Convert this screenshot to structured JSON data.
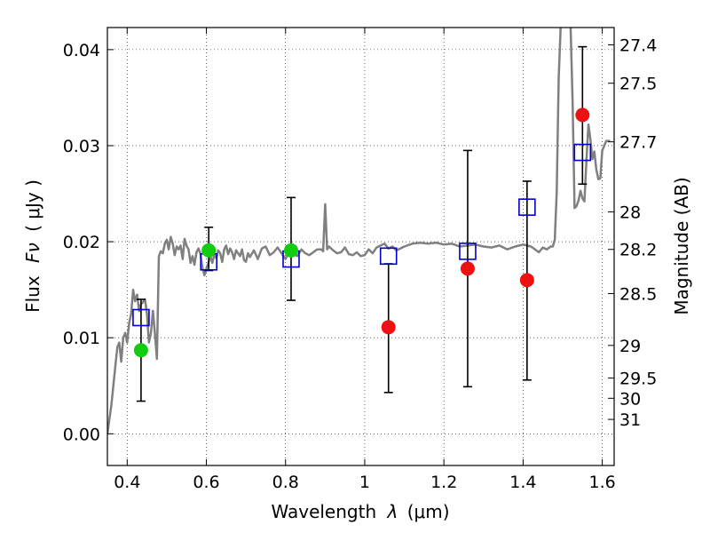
{
  "chart_data": {
    "type": "scatter",
    "xlabel_prefix": "Wavelength",
    "xlabel_symbol": "λ",
    "xlabel_unit": "(μm)",
    "ylabel_prefix": "Flux",
    "ylabel_symbol": "Fν",
    "ylabel_unit": "( μJy )",
    "y2label": "Magnitude (AB)",
    "xlim": [
      0.35,
      1.63
    ],
    "ylim": [
      -0.0033,
      0.0423
    ],
    "grid": true,
    "x_ticks": [
      0.4,
      0.6,
      0.8,
      1.0,
      1.2,
      1.4,
      1.6
    ],
    "x_tick_labels": [
      "0.4",
      "0.6",
      "0.8",
      "1",
      "1.2",
      "1.4",
      "1.6"
    ],
    "y_ticks": [
      0.0,
      0.01,
      0.02,
      0.03,
      0.04
    ],
    "y_tick_labels": [
      "0.00",
      "0.01",
      "0.02",
      "0.03",
      "0.04"
    ],
    "mag_ticks": [
      {
        "label": "27.4",
        "flux": 0.0405
      },
      {
        "label": "27.5",
        "flux": 0.0365
      },
      {
        "label": "27.7",
        "flux": 0.0304
      },
      {
        "label": "28",
        "flux": 0.0231
      },
      {
        "label": "28.2",
        "flux": 0.0192
      },
      {
        "label": "28.5",
        "flux": 0.0146
      },
      {
        "label": "29",
        "flux": 0.0092
      },
      {
        "label": "29.5",
        "flux": 0.0058
      },
      {
        "label": "30",
        "flux": 0.0037
      },
      {
        "label": "31",
        "flux": 0.0015
      }
    ],
    "series": [
      {
        "name": "model-spectrum",
        "kind": "line",
        "color": "#808080",
        "x": [
          0.35,
          0.36,
          0.37,
          0.375,
          0.38,
          0.385,
          0.39,
          0.395,
          0.4,
          0.405,
          0.41,
          0.415,
          0.42,
          0.425,
          0.43,
          0.435,
          0.44,
          0.445,
          0.45,
          0.455,
          0.46,
          0.465,
          0.47,
          0.475,
          0.48,
          0.485,
          0.49,
          0.495,
          0.5,
          0.505,
          0.51,
          0.515,
          0.52,
          0.525,
          0.53,
          0.535,
          0.54,
          0.545,
          0.55,
          0.555,
          0.56,
          0.565,
          0.57,
          0.575,
          0.58,
          0.585,
          0.59,
          0.595,
          0.6,
          0.605,
          0.61,
          0.615,
          0.62,
          0.625,
          0.63,
          0.635,
          0.64,
          0.645,
          0.65,
          0.655,
          0.66,
          0.665,
          0.67,
          0.675,
          0.68,
          0.685,
          0.69,
          0.695,
          0.7,
          0.705,
          0.71,
          0.72,
          0.73,
          0.74,
          0.75,
          0.76,
          0.77,
          0.78,
          0.79,
          0.8,
          0.81,
          0.82,
          0.83,
          0.84,
          0.85,
          0.86,
          0.87,
          0.88,
          0.89,
          0.895,
          0.9,
          0.905,
          0.91,
          0.92,
          0.93,
          0.94,
          0.95,
          0.96,
          0.97,
          0.98,
          0.99,
          1.0,
          1.01,
          1.02,
          1.03,
          1.04,
          1.05,
          1.06,
          1.07,
          1.08,
          1.09,
          1.1,
          1.12,
          1.14,
          1.16,
          1.18,
          1.2,
          1.22,
          1.24,
          1.26,
          1.28,
          1.3,
          1.32,
          1.34,
          1.36,
          1.38,
          1.4,
          1.42,
          1.43,
          1.44,
          1.45,
          1.46,
          1.47,
          1.475,
          1.48,
          1.485,
          1.49,
          1.495,
          1.5,
          1.505,
          1.51,
          1.515,
          1.52,
          1.525,
          1.53,
          1.535,
          1.54,
          1.545,
          1.55,
          1.555,
          1.56,
          1.565,
          1.57,
          1.575,
          1.58,
          1.585,
          1.59,
          1.595,
          1.6,
          1.61,
          1.62
        ],
        "values": [
          0.0,
          0.003,
          0.007,
          0.009,
          0.0095,
          0.0075,
          0.01,
          0.0105,
          0.0095,
          0.0115,
          0.0125,
          0.015,
          0.0138,
          0.0145,
          0.0128,
          0.0135,
          0.0137,
          0.014,
          0.0125,
          0.0095,
          0.0105,
          0.0128,
          0.0105,
          0.0078,
          0.0185,
          0.019,
          0.0188,
          0.0198,
          0.0202,
          0.0192,
          0.0205,
          0.0198,
          0.0186,
          0.0195,
          0.0192,
          0.0196,
          0.0182,
          0.0203,
          0.0196,
          0.0192,
          0.0178,
          0.0185,
          0.0176,
          0.0189,
          0.0193,
          0.0188,
          0.0173,
          0.0165,
          0.0172,
          0.0178,
          0.0185,
          0.0178,
          0.0186,
          0.0183,
          0.0191,
          0.0188,
          0.0179,
          0.0192,
          0.0196,
          0.0187,
          0.0193,
          0.0189,
          0.0182,
          0.0191,
          0.0188,
          0.0185,
          0.0192,
          0.0181,
          0.0179,
          0.0188,
          0.0184,
          0.0191,
          0.0182,
          0.0193,
          0.0195,
          0.0186,
          0.0189,
          0.0194,
          0.0188,
          0.0182,
          0.0191,
          0.0187,
          0.0185,
          0.0192,
          0.0188,
          0.0186,
          0.0189,
          0.0192,
          0.0192,
          0.019,
          0.0239,
          0.0192,
          0.0195,
          0.0191,
          0.0188,
          0.0189,
          0.0194,
          0.0187,
          0.0186,
          0.0189,
          0.0185,
          0.0186,
          0.0192,
          0.0188,
          0.0194,
          0.0196,
          0.0198,
          0.0193,
          0.0195,
          0.0191,
          0.0193,
          0.0195,
          0.0198,
          0.0199,
          0.0198,
          0.0199,
          0.0197,
          0.0198,
          0.0195,
          0.0196,
          0.0197,
          0.0195,
          0.0194,
          0.0196,
          0.0192,
          0.0195,
          0.0197,
          0.0195,
          0.0192,
          0.0189,
          0.0194,
          0.0192,
          0.0195,
          0.0195,
          0.0202,
          0.0252,
          0.037,
          0.0425,
          0.0425,
          0.0425,
          0.0425,
          0.0425,
          0.0425,
          0.0345,
          0.0235,
          0.0237,
          0.0243,
          0.0253,
          0.0245,
          0.0242,
          0.0285,
          0.0322,
          0.0307,
          0.0286,
          0.0294,
          0.0275,
          0.0265,
          0.0266,
          0.0295,
          0.0305,
          0.0305
        ]
      },
      {
        "name": "model-bandpass-fluxes",
        "kind": "open-square",
        "color": "#0000cc",
        "x": [
          0.435,
          0.606,
          0.814,
          1.06,
          1.26,
          1.41,
          1.55
        ],
        "values": [
          0.0121,
          0.0179,
          0.0182,
          0.0185,
          0.019,
          0.0236,
          0.0293
        ]
      },
      {
        "name": "detections",
        "kind": "filled-circle",
        "color": "#11cc11",
        "x": [
          0.435,
          0.606,
          0.814
        ],
        "values": [
          0.0087,
          0.0191,
          0.0191
        ],
        "err_low": [
          0.0034,
          0.017,
          0.0139
        ],
        "err_high": [
          0.014,
          0.0215,
          0.0246
        ]
      },
      {
        "name": "non-detections",
        "kind": "filled-circle",
        "color": "#ee1111",
        "x": [
          1.06,
          1.26,
          1.41,
          1.55
        ],
        "values": [
          0.0111,
          0.0172,
          0.016,
          0.0332
        ],
        "err_low": [
          0.0043,
          0.0049,
          0.0056,
          0.026
        ],
        "err_high": [
          0.0177,
          0.0295,
          0.0263,
          0.0403
        ]
      }
    ]
  }
}
